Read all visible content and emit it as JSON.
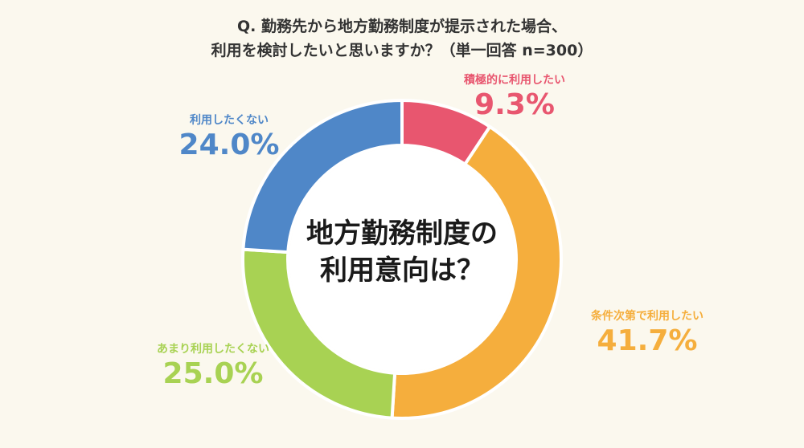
{
  "question": {
    "line1": "Q. 勤務先から地方勤務制度が提示された場合、",
    "line2": "利用を検討したいと思いますか？（単一回答 n=300）"
  },
  "center": {
    "line1": "地方勤務制度の",
    "line2": "利用意向は？"
  },
  "chart_data": {
    "type": "pie",
    "donut": true,
    "categories": [
      "積極的に利用したい",
      "条件次第で利用したい",
      "あまり利用したくない",
      "利用したくない"
    ],
    "values": [
      9.3,
      41.7,
      25.0,
      24.0
    ],
    "labels": [
      "9.3%",
      "41.7%",
      "25.0%",
      "24.0%"
    ],
    "colors": [
      "#e8566f",
      "#f5ae3d",
      "#a8d253",
      "#4f87c8"
    ]
  }
}
